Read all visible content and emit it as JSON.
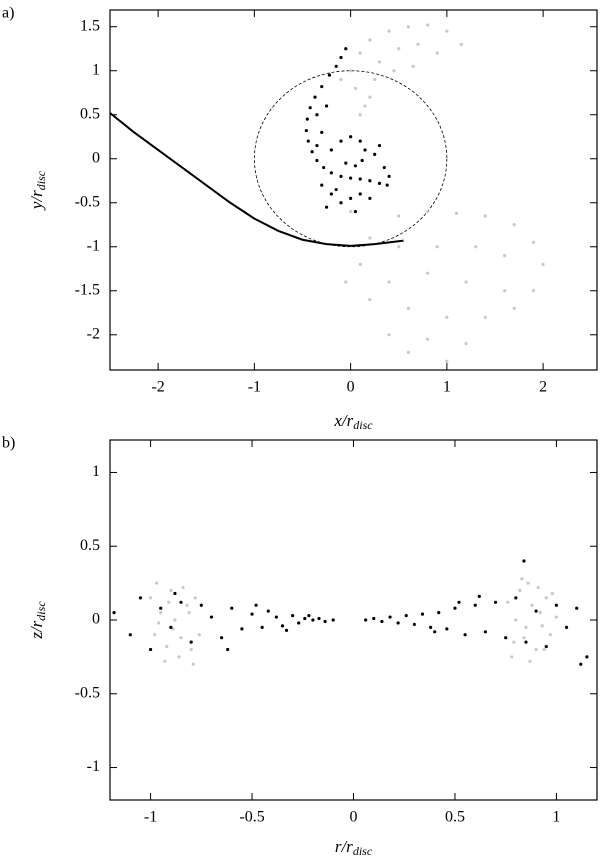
{
  "chart_data": [
    {
      "type": "scatter",
      "panel_label": "a)",
      "xlabel": "x/r",
      "xlabel_sub": "disc",
      "ylabel": "y/r",
      "ylabel_sub": "disc",
      "xlim": [
        -2.5,
        2.56
      ],
      "ylim": [
        -2.4,
        1.69
      ],
      "xticks": [
        -2,
        -1,
        0,
        1,
        2
      ],
      "yticks": [
        -2,
        -1.5,
        -1,
        -0.5,
        0,
        0.5,
        1,
        1.5
      ],
      "circle": {
        "x": 0,
        "y": 0,
        "r": 1,
        "dashed": true
      },
      "series": [
        {
          "style": "points",
          "color": "#c8c8c8",
          "x": [
            0,
            0.1,
            0.2,
            0.4,
            0.6,
            0.8,
            1.0,
            1.15,
            0.3,
            0.5,
            0.7,
            0.9,
            0.05,
            0.15,
            -0.1,
            0.25,
            0.45,
            0.65,
            0.2,
            0.1,
            0.5,
            0.8,
            1.1,
            1.4,
            1.7,
            1.9,
            2.0,
            0.2,
            0.5,
            0.9,
            1.3,
            1.6,
            0.1,
            0.4,
            0.8,
            1.2,
            1.6,
            1.9,
            0.2,
            0.6,
            1.0,
            1.4,
            1.7,
            0.4,
            0.8,
            1.2,
            0.6,
            1.0,
            0.0,
            -0.05
          ],
          "values": [
            1.0,
            1.2,
            1.35,
            1.45,
            1.5,
            1.52,
            1.45,
            1.3,
            1.1,
            1.25,
            1.3,
            1.2,
            0.8,
            0.6,
            0.9,
            0.9,
            1.0,
            1.05,
            0.7,
            0.5,
            -0.65,
            -0.6,
            -0.62,
            -0.65,
            -0.75,
            -0.95,
            -1.2,
            -0.9,
            -1.0,
            -1.0,
            -1.0,
            -1.1,
            -1.2,
            -1.4,
            -1.3,
            -1.4,
            -1.5,
            -1.5,
            -1.6,
            -1.7,
            -1.8,
            -1.8,
            -1.7,
            -2.0,
            -2.05,
            -2.1,
            -2.2,
            -2.3,
            -0.6,
            -1.4
          ]
        },
        {
          "style": "points",
          "color": "#000000",
          "x": [
            -0.05,
            -0.1,
            -0.15,
            -0.22,
            -0.3,
            -0.37,
            -0.42,
            -0.45,
            -0.46,
            -0.44,
            -0.4,
            -0.35,
            -0.28,
            -0.2,
            -0.1,
            0,
            0.1,
            0.2,
            0.3,
            0.38,
            -0.2,
            -0.1,
            0,
            0.1,
            0.15,
            0.12,
            0.05,
            -0.05,
            0.25,
            0.35,
            0.3,
            0.4,
            -0.3,
            -0.2,
            -0.1,
            0,
            0.1,
            -0.25,
            0.05,
            -0.15,
            0.2,
            -0.35,
            -0.3,
            -0.25,
            -0.35
          ],
          "values": [
            1.25,
            1.15,
            1.05,
            0.95,
            0.82,
            0.7,
            0.58,
            0.45,
            0.32,
            0.2,
            0.08,
            -0.02,
            -0.1,
            -0.16,
            -0.2,
            -0.22,
            -0.23,
            -0.25,
            -0.28,
            -0.3,
            0.1,
            0.2,
            0.25,
            0.2,
            0.1,
            -0.02,
            -0.08,
            -0.05,
            0.05,
            -0.1,
            0.15,
            -0.2,
            -0.3,
            -0.4,
            -0.5,
            -0.45,
            -0.4,
            -0.55,
            -0.6,
            -0.35,
            -0.45,
            0.5,
            0.3,
            0.6,
            0.15
          ]
        },
        {
          "style": "line",
          "color": "#000000",
          "x": [
            -2.5,
            -2.25,
            -2,
            -1.75,
            -1.5,
            -1.25,
            -1,
            -0.75,
            -0.5,
            -0.25,
            0,
            0.25,
            0.55
          ],
          "values": [
            0.52,
            0.3,
            0.1,
            -0.1,
            -0.3,
            -0.5,
            -0.68,
            -0.82,
            -0.92,
            -0.97,
            -0.99,
            -0.97,
            -0.93
          ]
        }
      ]
    },
    {
      "type": "scatter",
      "panel_label": "b)",
      "xlabel": "r/r",
      "xlabel_sub": "disc",
      "ylabel": "z/r",
      "ylabel_sub": "disc",
      "xlim": [
        -1.2,
        1.2
      ],
      "ylim": [
        -1.22,
        1.22
      ],
      "xticks": [
        -1,
        -0.5,
        0,
        0.5,
        1
      ],
      "yticks": [
        -1,
        -0.5,
        0,
        0.5,
        1
      ],
      "series": [
        {
          "style": "points",
          "color": "#c8c8c8",
          "x": [
            -1,
            -0.98,
            -0.95,
            -0.92,
            -0.9,
            -0.88,
            -0.85,
            -0.82,
            -0.8,
            -0.78,
            -0.96,
            -0.91,
            -0.86,
            -0.81,
            -0.76,
            -0.93,
            -0.84,
            -0.97,
            -0.89,
            -0.79,
            0.76,
            0.79,
            0.82,
            0.85,
            0.88,
            0.9,
            0.92,
            0.95,
            0.97,
            1.0,
            0.78,
            0.83,
            0.87,
            0.91,
            0.94,
            0.8,
            0.86,
            0.93,
            0.98,
            0.84
          ],
          "values": [
            0.15,
            -0.1,
            0.05,
            -0.18,
            0.2,
            0.0,
            -0.12,
            0.1,
            -0.2,
            0.15,
            -0.02,
            0.12,
            -0.25,
            0.05,
            -0.1,
            -0.28,
            0.22,
            0.25,
            -0.06,
            -0.3,
            0.12,
            -0.15,
            0.2,
            -0.05,
            0.1,
            -0.2,
            0.05,
            0.15,
            -0.1,
            0.02,
            -0.25,
            0.28,
            -0.28,
            0.22,
            -0.2,
            0.0,
            0.25,
            -0.04,
            0.18,
            -0.12
          ]
        },
        {
          "style": "points",
          "color": "#000000",
          "x": [
            -1.18,
            -1.1,
            -1.05,
            -1.0,
            -0.95,
            -0.9,
            -0.85,
            -0.8,
            -0.75,
            -0.7,
            -0.65,
            -0.6,
            -0.55,
            -0.5,
            -0.45,
            -0.42,
            -0.38,
            -0.35,
            -0.3,
            -0.27,
            -0.24,
            -0.2,
            -0.17,
            -0.14,
            -0.1,
            -0.88,
            -0.62,
            -0.48,
            -0.33,
            -0.22,
            0.06,
            0.1,
            0.14,
            0.18,
            0.22,
            0.26,
            0.3,
            0.34,
            0.38,
            0.42,
            0.46,
            0.5,
            0.55,
            0.6,
            0.65,
            0.7,
            0.75,
            0.8,
            0.85,
            0.9,
            0.95,
            1.0,
            1.05,
            1.1,
            1.15,
            0.84,
            0.52,
            0.4,
            0.62,
            1.12
          ],
          "values": [
            0.05,
            -0.1,
            0.15,
            -0.2,
            0.08,
            -0.05,
            0.12,
            -0.15,
            0.1,
            0.02,
            -0.12,
            0.08,
            -0.06,
            0.04,
            -0.05,
            0.06,
            0.02,
            -0.04,
            0.03,
            -0.02,
            0.01,
            0.0,
            0.01,
            -0.01,
            0.0,
            0.18,
            -0.2,
            0.1,
            -0.07,
            0.03,
            0.0,
            0.01,
            -0.01,
            0.02,
            -0.02,
            0.03,
            -0.03,
            0.04,
            -0.05,
            0.05,
            -0.06,
            0.08,
            -0.1,
            0.1,
            -0.08,
            0.12,
            -0.12,
            0.15,
            -0.15,
            0.06,
            -0.18,
            0.1,
            -0.05,
            0.08,
            -0.25,
            0.4,
            0.12,
            -0.08,
            0.16,
            -0.3
          ]
        }
      ]
    }
  ]
}
